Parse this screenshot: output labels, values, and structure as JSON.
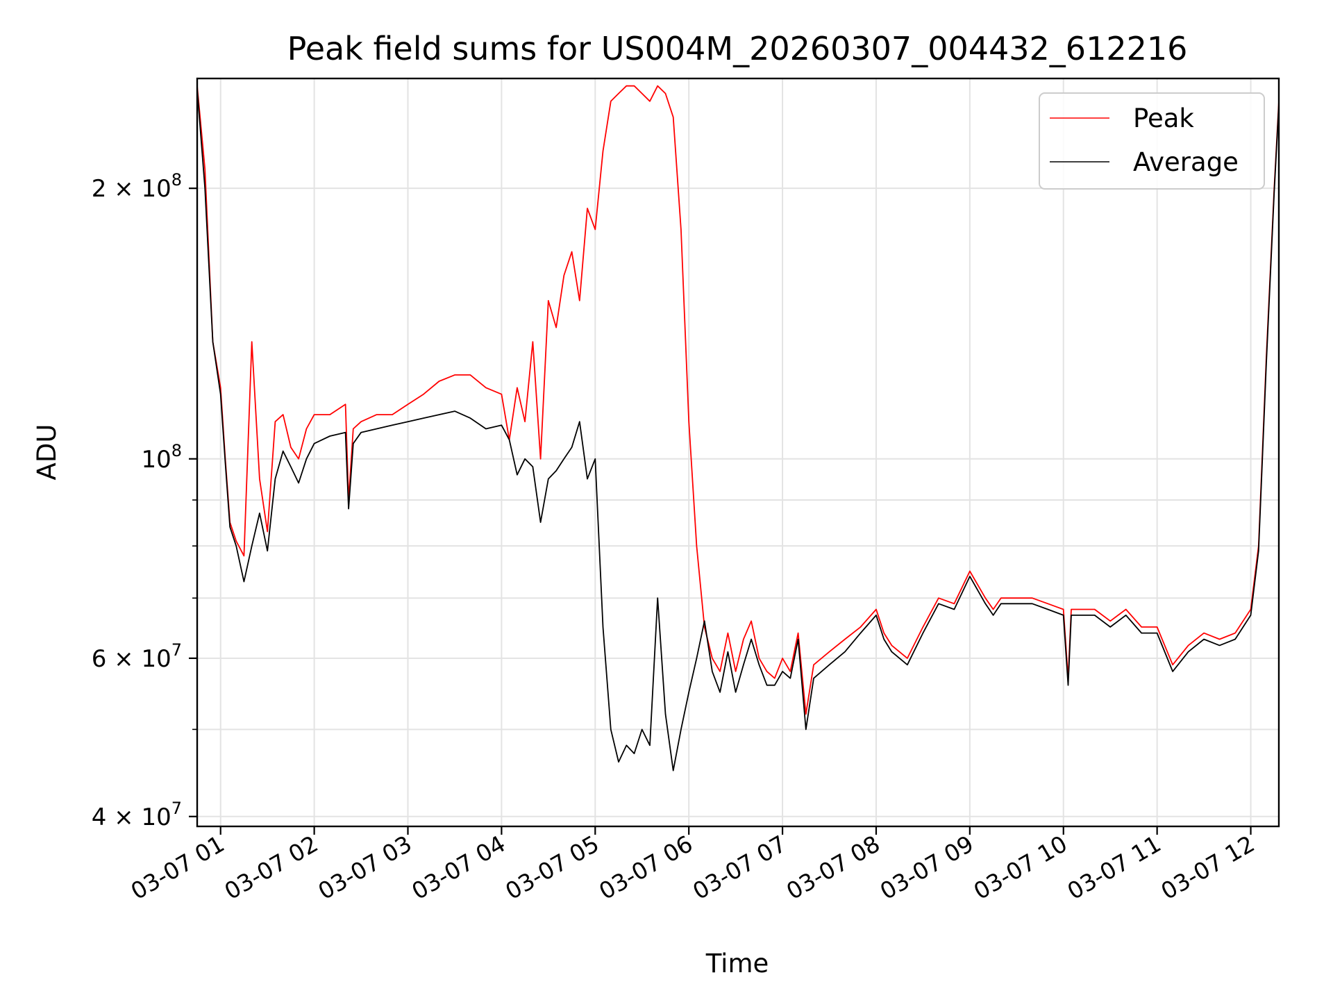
{
  "chart_data": {
    "type": "line",
    "title": "Peak field sums for US004M_20260307_004432_612216",
    "xlabel": "Time",
    "ylabel": "ADU",
    "yscale": "log",
    "ylim": [
      39000000,
      265000000
    ],
    "xlim": [
      "03-07 00:45",
      "03-07 12:18"
    ],
    "grid": true,
    "legend_position": "top-right",
    "x_ticks": [
      "03-07 01",
      "03-07 02",
      "03-07 03",
      "03-07 04",
      "03-07 05",
      "03-07 06",
      "03-07 07",
      "03-07 08",
      "03-07 09",
      "03-07 10",
      "03-07 11",
      "03-07 12"
    ],
    "y_ticks": [
      {
        "value": 40000000,
        "mantissa": "4",
        "exponent": "7"
      },
      {
        "value": 60000000,
        "mantissa": "6",
        "exponent": "7"
      },
      {
        "value": 100000000,
        "mantissa": "",
        "exponent": "8"
      },
      {
        "value": 200000000,
        "mantissa": "2",
        "exponent": "8"
      }
    ],
    "series": [
      {
        "name": "Peak",
        "color": "#ff0000",
        "x": [
          "03-07 00:45",
          "03-07 00:50",
          "03-07 00:55",
          "03-07 01:00",
          "03-07 01:03",
          "03-07 01:06",
          "03-07 01:10",
          "03-07 01:15",
          "03-07 01:20",
          "03-07 01:25",
          "03-07 01:30",
          "03-07 01:35",
          "03-07 01:40",
          "03-07 01:45",
          "03-07 01:50",
          "03-07 01:55",
          "03-07 02:00",
          "03-07 02:10",
          "03-07 02:20",
          "03-07 02:22",
          "03-07 02:25",
          "03-07 02:30",
          "03-07 02:40",
          "03-07 02:50",
          "03-07 03:00",
          "03-07 03:10",
          "03-07 03:20",
          "03-07 03:30",
          "03-07 03:40",
          "03-07 03:50",
          "03-07 04:00",
          "03-07 04:05",
          "03-07 04:10",
          "03-07 04:15",
          "03-07 04:20",
          "03-07 04:25",
          "03-07 04:30",
          "03-07 04:35",
          "03-07 04:40",
          "03-07 04:45",
          "03-07 04:50",
          "03-07 04:55",
          "03-07 05:00",
          "03-07 05:05",
          "03-07 05:10",
          "03-07 05:15",
          "03-07 05:20",
          "03-07 05:25",
          "03-07 05:30",
          "03-07 05:35",
          "03-07 05:40",
          "03-07 05:45",
          "03-07 05:50",
          "03-07 05:55",
          "03-07 06:00",
          "03-07 06:05",
          "03-07 06:10",
          "03-07 06:15",
          "03-07 06:20",
          "03-07 06:25",
          "03-07 06:30",
          "03-07 06:35",
          "03-07 06:40",
          "03-07 06:45",
          "03-07 06:50",
          "03-07 06:55",
          "03-07 07:00",
          "03-07 07:05",
          "03-07 07:10",
          "03-07 07:15",
          "03-07 07:20",
          "03-07 07:30",
          "03-07 07:40",
          "03-07 07:50",
          "03-07 08:00",
          "03-07 08:05",
          "03-07 08:10",
          "03-07 08:20",
          "03-07 08:30",
          "03-07 08:40",
          "03-07 08:50",
          "03-07 09:00",
          "03-07 09:10",
          "03-07 09:15",
          "03-07 09:20",
          "03-07 09:30",
          "03-07 09:40",
          "03-07 09:50",
          "03-07 10:00",
          "03-07 10:03",
          "03-07 10:05",
          "03-07 10:10",
          "03-07 10:20",
          "03-07 10:30",
          "03-07 10:40",
          "03-07 10:50",
          "03-07 11:00",
          "03-07 11:10",
          "03-07 11:20",
          "03-07 11:30",
          "03-07 11:40",
          "03-07 11:50",
          "03-07 12:00",
          "03-07 12:05",
          "03-07 12:10",
          "03-07 12:15",
          "03-07 12:18"
        ],
        "y": [
          260000000,
          210000000,
          135000000,
          120000000,
          100000000,
          85000000,
          81000000,
          78000000,
          135000000,
          95000000,
          83000000,
          110000000,
          112000000,
          103000000,
          100000000,
          108000000,
          112000000,
          112000000,
          115000000,
          90000000,
          108000000,
          110000000,
          112000000,
          112000000,
          115000000,
          118000000,
          122000000,
          124000000,
          124000000,
          120000000,
          118000000,
          105000000,
          120000000,
          110000000,
          135000000,
          100000000,
          150000000,
          140000000,
          160000000,
          170000000,
          150000000,
          190000000,
          180000000,
          220000000,
          250000000,
          255000000,
          260000000,
          260000000,
          255000000,
          250000000,
          260000000,
          255000000,
          240000000,
          180000000,
          110000000,
          80000000,
          65000000,
          60000000,
          58000000,
          64000000,
          58000000,
          63000000,
          66000000,
          60000000,
          58000000,
          57000000,
          60000000,
          58000000,
          64000000,
          52000000,
          59000000,
          61000000,
          63000000,
          65000000,
          68000000,
          64000000,
          62000000,
          60000000,
          65000000,
          70000000,
          69000000,
          75000000,
          70000000,
          68000000,
          70000000,
          70000000,
          70000000,
          69000000,
          68000000,
          57000000,
          68000000,
          68000000,
          68000000,
          66000000,
          68000000,
          65000000,
          65000000,
          59000000,
          62000000,
          64000000,
          63000000,
          64000000,
          68000000,
          80000000,
          130000000,
          200000000,
          250000000
        ]
      },
      {
        "name": "Average",
        "color": "#000000",
        "x": [
          "03-07 00:45",
          "03-07 00:50",
          "03-07 00:55",
          "03-07 01:00",
          "03-07 01:03",
          "03-07 01:06",
          "03-07 01:10",
          "03-07 01:15",
          "03-07 01:20",
          "03-07 01:25",
          "03-07 01:30",
          "03-07 01:35",
          "03-07 01:40",
          "03-07 01:45",
          "03-07 01:50",
          "03-07 01:55",
          "03-07 02:00",
          "03-07 02:10",
          "03-07 02:20",
          "03-07 02:22",
          "03-07 02:25",
          "03-07 02:30",
          "03-07 02:40",
          "03-07 02:50",
          "03-07 03:00",
          "03-07 03:10",
          "03-07 03:20",
          "03-07 03:30",
          "03-07 03:40",
          "03-07 03:50",
          "03-07 04:00",
          "03-07 04:05",
          "03-07 04:10",
          "03-07 04:15",
          "03-07 04:20",
          "03-07 04:25",
          "03-07 04:30",
          "03-07 04:35",
          "03-07 04:40",
          "03-07 04:45",
          "03-07 04:50",
          "03-07 04:55",
          "03-07 05:00",
          "03-07 05:05",
          "03-07 05:10",
          "03-07 05:15",
          "03-07 05:20",
          "03-07 05:25",
          "03-07 05:30",
          "03-07 05:35",
          "03-07 05:40",
          "03-07 05:45",
          "03-07 05:50",
          "03-07 05:55",
          "03-07 06:00",
          "03-07 06:05",
          "03-07 06:10",
          "03-07 06:15",
          "03-07 06:20",
          "03-07 06:25",
          "03-07 06:30",
          "03-07 06:35",
          "03-07 06:40",
          "03-07 06:45",
          "03-07 06:50",
          "03-07 06:55",
          "03-07 07:00",
          "03-07 07:05",
          "03-07 07:10",
          "03-07 07:15",
          "03-07 07:20",
          "03-07 07:30",
          "03-07 07:40",
          "03-07 07:50",
          "03-07 08:00",
          "03-07 08:05",
          "03-07 08:10",
          "03-07 08:20",
          "03-07 08:30",
          "03-07 08:40",
          "03-07 08:50",
          "03-07 09:00",
          "03-07 09:10",
          "03-07 09:15",
          "03-07 09:20",
          "03-07 09:30",
          "03-07 09:40",
          "03-07 09:50",
          "03-07 10:00",
          "03-07 10:03",
          "03-07 10:05",
          "03-07 10:10",
          "03-07 10:20",
          "03-07 10:30",
          "03-07 10:40",
          "03-07 10:50",
          "03-07 11:00",
          "03-07 11:10",
          "03-07 11:20",
          "03-07 11:30",
          "03-07 11:40",
          "03-07 11:50",
          "03-07 12:00",
          "03-07 12:05",
          "03-07 12:10",
          "03-07 12:15",
          "03-07 12:18"
        ],
        "y": [
          258000000,
          200000000,
          135000000,
          118000000,
          99000000,
          84000000,
          80000000,
          73000000,
          80000000,
          87000000,
          79000000,
          95000000,
          102000000,
          98000000,
          94000000,
          100000000,
          104000000,
          106000000,
          107000000,
          88000000,
          104000000,
          107000000,
          108000000,
          109000000,
          110000000,
          111000000,
          112000000,
          113000000,
          111000000,
          108000000,
          109000000,
          105000000,
          96000000,
          100000000,
          98000000,
          85000000,
          95000000,
          97000000,
          100000000,
          103000000,
          110000000,
          95000000,
          100000000,
          65000000,
          50000000,
          46000000,
          48000000,
          47000000,
          50000000,
          48000000,
          70000000,
          52000000,
          45000000,
          50000000,
          55000000,
          60000000,
          66000000,
          58000000,
          55000000,
          61000000,
          55000000,
          59000000,
          63000000,
          59000000,
          56000000,
          56000000,
          58000000,
          57000000,
          63000000,
          50000000,
          57000000,
          59000000,
          61000000,
          64000000,
          67000000,
          63000000,
          61000000,
          59000000,
          64000000,
          69000000,
          68000000,
          74000000,
          69000000,
          67000000,
          69000000,
          69000000,
          69000000,
          68000000,
          67000000,
          56000000,
          67000000,
          67000000,
          67000000,
          65000000,
          67000000,
          64000000,
          64000000,
          58000000,
          61000000,
          63000000,
          62000000,
          63000000,
          67000000,
          79000000,
          128000000,
          198000000,
          248000000
        ]
      }
    ]
  }
}
